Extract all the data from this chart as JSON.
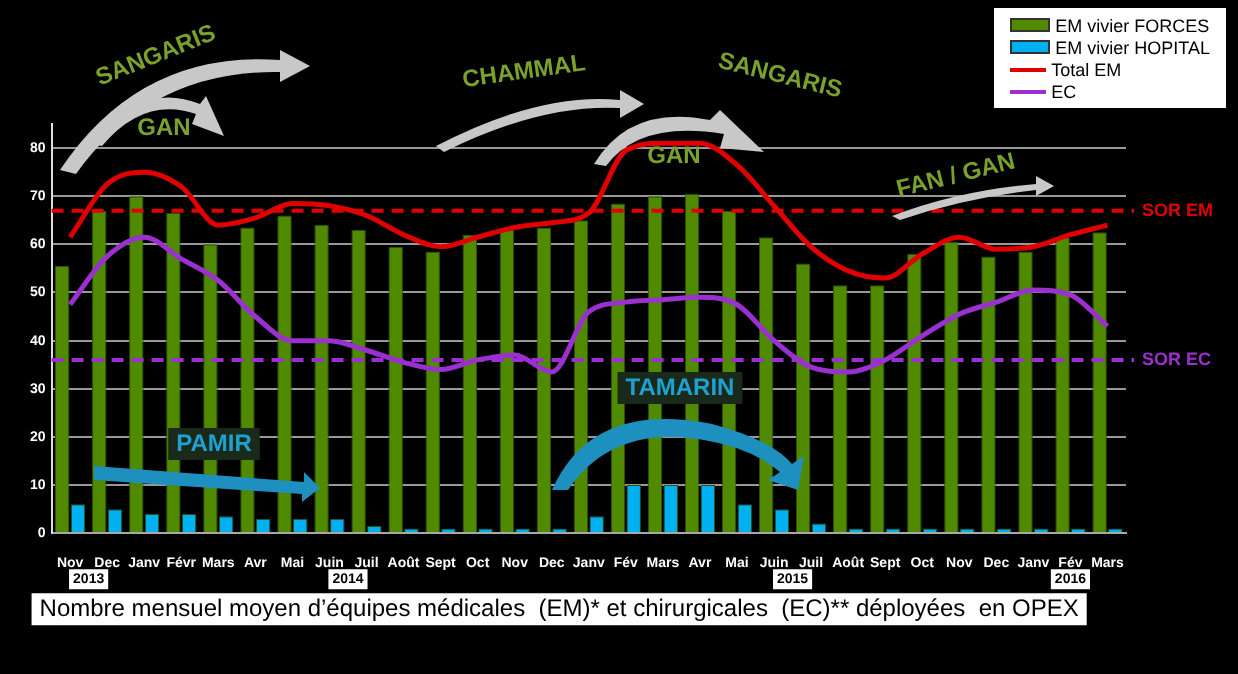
{
  "chart_data": {
    "type": "bar",
    "title": "Nombre mensuel moyen d’équipes médicales  (EM)* et chirurgicales  (EC)** déployées  en OPEX",
    "categories": [
      "Nov",
      "Dec",
      "Janv",
      "Févr",
      "Mars",
      "Avr",
      "Mai",
      "Juin",
      "Juil",
      "Août",
      "Sept",
      "Oct",
      "Nov",
      "Dec",
      "Janv",
      "Fév",
      "Mars",
      "Avr",
      "Mai",
      "Juin",
      "Juil",
      "Août",
      "Sept",
      "Oct",
      "Nov",
      "Dec",
      "Janv",
      "Fév",
      "Mars"
    ],
    "series": [
      {
        "name": "EM vivier FORCES",
        "color": "#4f8a00",
        "values": [
          55.5,
          67,
          70,
          66.5,
          60,
          63.5,
          66,
          64,
          63,
          59.5,
          58.5,
          62,
          63,
          63.5,
          65,
          68.5,
          70,
          70.5,
          67,
          61.5,
          56,
          51.5,
          51.5,
          58,
          60.5,
          57.5,
          58.5,
          61.5,
          62.5
        ]
      },
      {
        "name": "EM vivier HOPITAL",
        "color": "#00b0f0",
        "values": [
          6,
          5,
          4,
          4,
          3.5,
          3,
          3,
          3,
          1.5,
          1,
          1,
          1,
          1,
          1,
          3.5,
          10,
          10,
          10,
          6,
          5,
          2,
          1,
          1,
          1,
          1,
          1,
          1,
          1,
          1
        ]
      },
      {
        "name": "Total EM",
        "type": "line",
        "color": "#e00000",
        "values": [
          61.5,
          72.5,
          75,
          72,
          64,
          65.5,
          68.5,
          68,
          66,
          62,
          59.5,
          61.5,
          63.5,
          64.5,
          66.5,
          79.5,
          81,
          81,
          76.5,
          68,
          59.5,
          54.5,
          53,
          58,
          61.5,
          59,
          59.5,
          62,
          64
        ]
      },
      {
        "name": "EC",
        "type": "line",
        "color": "#9b30d0",
        "values": [
          47.5,
          57.5,
          61.5,
          57,
          52.5,
          45,
          40,
          40,
          38,
          35.5,
          34,
          36,
          37,
          33.5,
          46,
          48,
          48.5,
          49,
          47.5,
          40,
          34.5,
          33.5,
          36,
          41,
          45.5,
          48,
          50.5,
          49.5,
          43
        ]
      }
    ],
    "ylim": [
      0,
      85
    ],
    "yticks": [
      0,
      10,
      20,
      30,
      40,
      50,
      60,
      70,
      80
    ],
    "grid": "y",
    "legend": "top right",
    "marker": "none",
    "ref_lines": [
      {
        "axis": "y",
        "value": 67,
        "label": "SOR EM",
        "color": "#e00000",
        "line_style": "dashed"
      },
      {
        "axis": "y",
        "value": 36,
        "label": "SOR EC",
        "color": "#9b30d0",
        "line_style": "dashed"
      }
    ],
    "annotations": [
      "SANGARIS",
      "GAN",
      "CHAMMAL",
      "SANGARIS",
      "GAN",
      "FAN / GAN",
      "PAMIR",
      "TAMARIN",
      "2013",
      "2014",
      "2015",
      "2016"
    ]
  }
}
